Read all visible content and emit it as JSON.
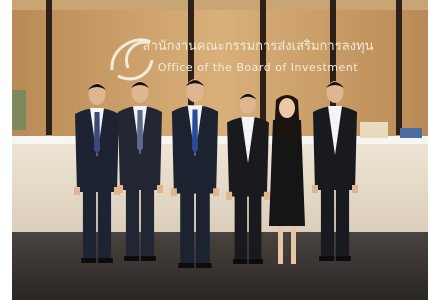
{
  "sign": {
    "thai": "สำนักงานคณะกรรมการส่งเสริมการลงทุน",
    "english": "Office of the Board of Investment"
  }
}
